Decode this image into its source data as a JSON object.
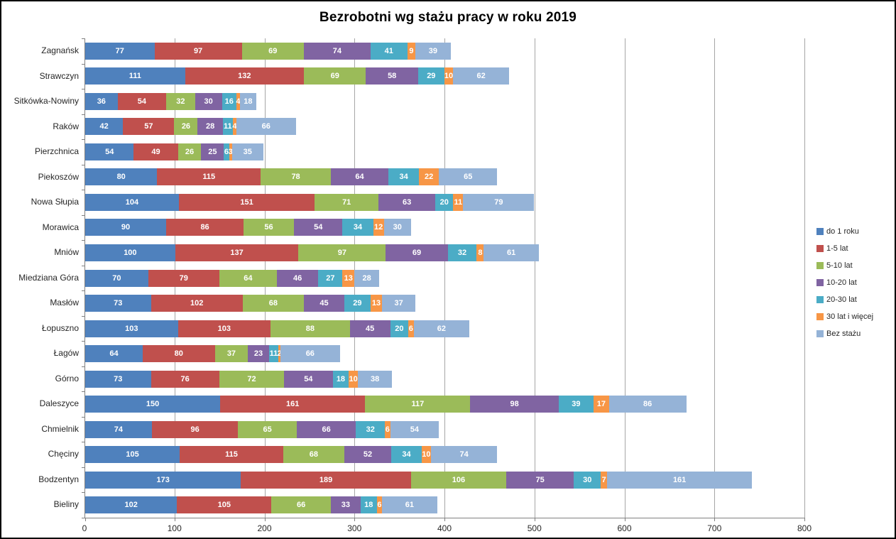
{
  "chart_data": {
    "type": "bar",
    "orientation": "horizontal-stacked",
    "title": "Bezrobotni wg stażu pracy w roku 2019",
    "categories": [
      "Zagnańsk",
      "Strawczyn",
      "Sitkówka-Nowiny",
      "Raków",
      "Pierzchnica",
      "Piekoszów",
      "Nowa Słupia",
      "Morawica",
      "Mniów",
      "Miedziana Góra",
      "Masłów",
      "Łopuszno",
      "Łagów",
      "Górno",
      "Daleszyce",
      "Chmielnik",
      "Chęciny",
      "Bodzentyn",
      "Bieliny"
    ],
    "series": [
      {
        "name": "do 1 roku",
        "color": "#4F81BD",
        "values": [
          77,
          111,
          36,
          42,
          54,
          80,
          104,
          90,
          100,
          70,
          73,
          103,
          64,
          73,
          150,
          74,
          105,
          173,
          102
        ]
      },
      {
        "name": "1-5 lat",
        "color": "#C0504D",
        "values": [
          97,
          132,
          54,
          57,
          49,
          115,
          151,
          86,
          137,
          79,
          102,
          103,
          80,
          76,
          161,
          96,
          115,
          189,
          105
        ]
      },
      {
        "name": "5-10 lat",
        "color": "#9BBB59",
        "values": [
          69,
          69,
          32,
          26,
          26,
          78,
          71,
          56,
          97,
          64,
          68,
          88,
          37,
          72,
          117,
          65,
          68,
          106,
          66
        ]
      },
      {
        "name": "10-20 lat",
        "color": "#8064A2",
        "values": [
          74,
          58,
          30,
          28,
          25,
          64,
          63,
          54,
          69,
          46,
          45,
          45,
          23,
          54,
          98,
          66,
          52,
          75,
          33
        ]
      },
      {
        "name": "20-30 lat",
        "color": "#4BACC6",
        "values": [
          41,
          29,
          16,
          11,
          6,
          34,
          20,
          34,
          32,
          27,
          29,
          20,
          11,
          18,
          39,
          32,
          34,
          30,
          18
        ]
      },
      {
        "name": "30 lat i więcej",
        "color": "#F79646",
        "values": [
          9,
          10,
          4,
          4,
          3,
          22,
          11,
          12,
          8,
          13,
          13,
          6,
          2,
          10,
          17,
          6,
          10,
          7,
          6
        ]
      },
      {
        "name": "Bez stażu",
        "color": "#95B3D7",
        "values": [
          39,
          62,
          18,
          66,
          35,
          65,
          79,
          30,
          61,
          28,
          37,
          62,
          66,
          38,
          86,
          54,
          74,
          161,
          61
        ]
      }
    ],
    "xlim": [
      0,
      800
    ],
    "x_ticks": [
      0,
      100,
      200,
      300,
      400,
      500,
      600,
      700,
      800
    ],
    "grid": "vertical-major",
    "legend_position": "right",
    "data_labels": "inside-center-white-bold"
  }
}
